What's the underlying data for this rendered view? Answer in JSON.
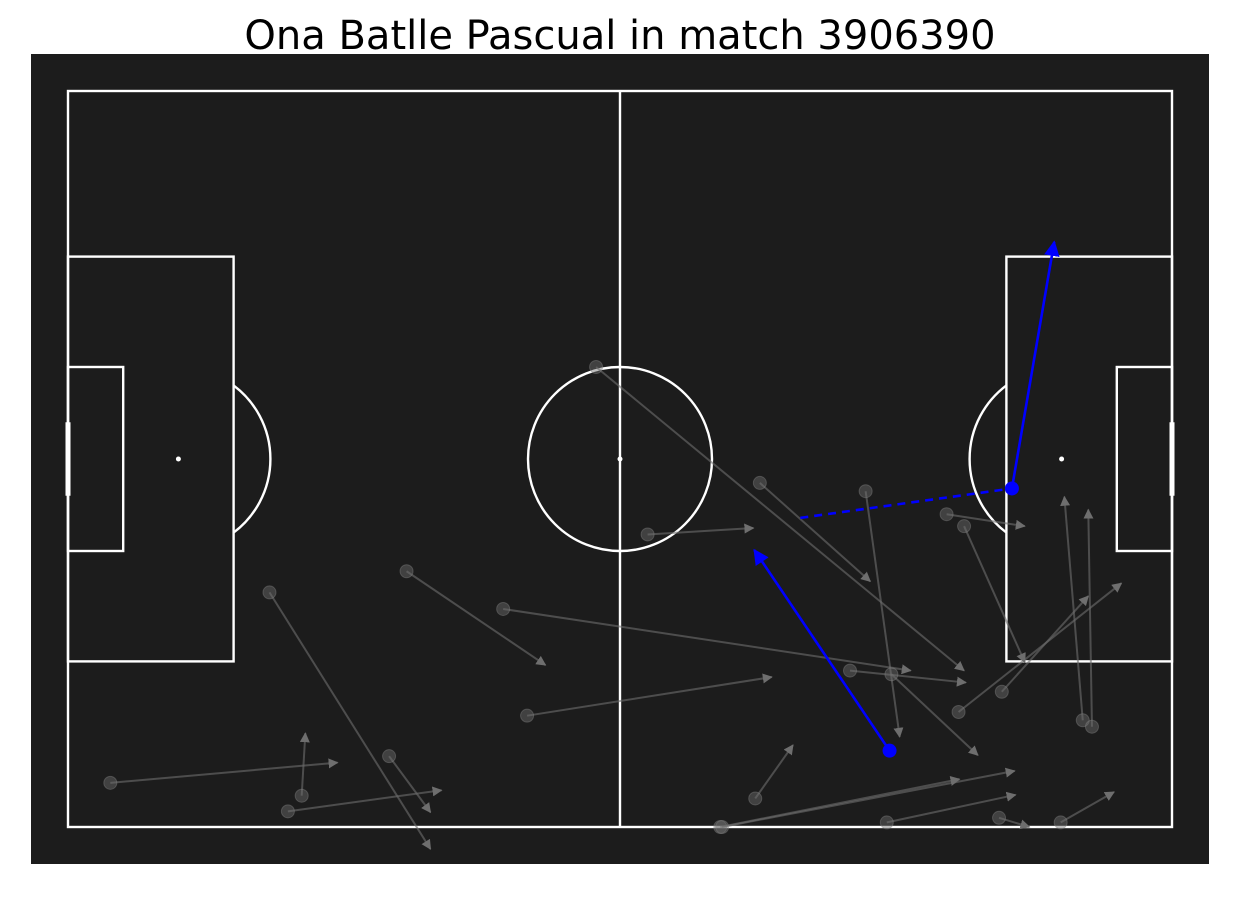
{
  "title": "Ona Batlle Pascual in match 3906390",
  "chart_data": {
    "type": "scatter",
    "x_range": [
      0,
      120
    ],
    "y_range": [
      0,
      80
    ],
    "colors": {
      "background": "#1c1c1c",
      "lines": "#ffffff",
      "highlight": "#0000ff",
      "other": "#6e6e6e"
    },
    "highlighted_actions": [
      {
        "kind": "pass",
        "start": [
          89.3,
          71.7
        ],
        "end": [
          74.6,
          49.9
        ],
        "style": "solid"
      },
      {
        "kind": "pass",
        "start": [
          102.6,
          43.2
        ],
        "end": [
          107.2,
          16.4
        ],
        "style": "solid"
      },
      {
        "kind": "carry",
        "start": [
          79.6,
          46.4
        ],
        "end": [
          102.6,
          43.2
        ],
        "style": "dashed"
      }
    ],
    "other_actions": [
      {
        "start": [
          4.6,
          75.2
        ],
        "end": [
          29.3,
          73.0
        ],
        "style": "solid"
      },
      {
        "start": [
          23.9,
          78.3
        ],
        "end": [
          40.6,
          76.0
        ],
        "style": "solid"
      },
      {
        "start": [
          21.9,
          54.5
        ],
        "end": [
          39.4,
          82.4
        ],
        "style": "solid"
      },
      {
        "start": [
          36.8,
          52.2
        ],
        "end": [
          51.9,
          62.4
        ],
        "style": "solid"
      },
      {
        "start": [
          47.3,
          56.3
        ],
        "end": [
          91.6,
          63.0
        ],
        "style": "solid"
      },
      {
        "start": [
          63.0,
          48.2
        ],
        "end": [
          74.5,
          47.5
        ],
        "style": "solid"
      },
      {
        "start": [
          57.4,
          30.0
        ],
        "end": [
          97.4,
          63.0
        ],
        "style": "solid"
      },
      {
        "start": [
          85.0,
          63.0
        ],
        "end": [
          97.6,
          64.3
        ],
        "style": "solid"
      },
      {
        "start": [
          86.7,
          43.5
        ],
        "end": [
          90.4,
          70.2
        ],
        "style": "solid"
      },
      {
        "start": [
          75.2,
          42.6
        ],
        "end": [
          87.2,
          53.3
        ],
        "style": "solid"
      },
      {
        "start": [
          95.5,
          46.0
        ],
        "end": [
          104.0,
          47.3
        ],
        "style": "solid"
      },
      {
        "start": [
          97.4,
          47.3
        ],
        "end": [
          104.0,
          62.1
        ],
        "style": "solid"
      },
      {
        "start": [
          107.9,
          79.5
        ],
        "end": [
          113.7,
          76.2
        ],
        "style": "solid"
      },
      {
        "start": [
          89.0,
          79.5
        ],
        "end": [
          103.0,
          76.5
        ],
        "style": "solid"
      },
      {
        "start": [
          25.4,
          76.6
        ],
        "end": [
          25.8,
          69.8
        ],
        "style": "solid"
      },
      {
        "start": [
          34.9,
          72.3
        ],
        "end": [
          39.4,
          78.4
        ],
        "style": "solid"
      },
      {
        "start": [
          49.9,
          67.9
        ],
        "end": [
          76.5,
          63.7
        ],
        "style": "solid"
      },
      {
        "start": [
          101.5,
          65.3
        ],
        "end": [
          110.9,
          54.9
        ],
        "style": "solid"
      },
      {
        "start": [
          96.8,
          67.5
        ],
        "end": [
          114.5,
          53.5
        ],
        "style": "solid"
      },
      {
        "start": [
          70.9,
          80.0
        ],
        "end": [
          96.9,
          74.8
        ],
        "style": "solid"
      },
      {
        "start": [
          74.7,
          76.9
        ],
        "end": [
          78.8,
          71.1
        ],
        "style": "solid"
      },
      {
        "start": [
          71.1,
          80.0
        ],
        "end": [
          102.9,
          73.9
        ],
        "style": "solid"
      },
      {
        "start": [
          89.5,
          63.4
        ],
        "end": [
          98.9,
          72.2
        ],
        "style": "solid"
      },
      {
        "start": [
          101.2,
          79.0
        ],
        "end": [
          104.5,
          80.0
        ],
        "style": "solid"
      },
      {
        "start": [
          110.3,
          68.4
        ],
        "end": [
          108.3,
          44.1
        ],
        "style": "solid"
      },
      {
        "start": [
          111.3,
          69.1
        ],
        "end": [
          110.9,
          45.5
        ],
        "style": "solid"
      }
    ],
    "pitch_markings": [
      "halfway-line",
      "center-circle",
      "penalty-areas",
      "goal-areas",
      "penalty-arcs",
      "goals"
    ]
  }
}
